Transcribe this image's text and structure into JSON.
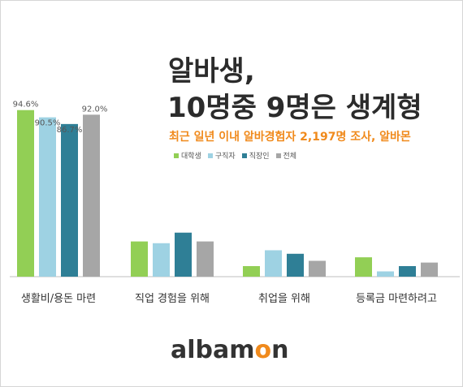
{
  "title_line1": "알바생,",
  "title_line2": "10명중 9명은 생계형",
  "subtitle": "최근 일년 이내 알바경험자 2,197명 조사, 알바몬",
  "logo": {
    "text_before": "albam",
    "text_o": "o",
    "text_after": "n"
  },
  "colors": {
    "accent": "#f08a1c"
  },
  "chart_data": {
    "type": "bar",
    "categories": [
      "생활비/용돈 마련",
      "직업 경험을 위해",
      "취업을 위해",
      "등록금 마련하려고"
    ],
    "series": [
      {
        "name": "대학생",
        "color": "#92cf55",
        "values": [
          94.6,
          20,
          6,
          11
        ]
      },
      {
        "name": "구직자",
        "color": "#9ed2e3",
        "values": [
          90.5,
          19,
          15,
          3
        ]
      },
      {
        "name": "직장인",
        "color": "#2f7f96",
        "values": [
          86.7,
          25,
          13,
          6
        ]
      },
      {
        "name": "전체",
        "color": "#a6a6a6",
        "values": [
          92.0,
          20,
          9,
          8
        ]
      }
    ],
    "data_labels": [
      [
        "94.6%",
        "90.5%",
        "86.7%",
        "92.0%"
      ],
      [
        "",
        "",
        "",
        ""
      ],
      [
        "",
        "",
        "",
        ""
      ],
      [
        "",
        "",
        "",
        ""
      ]
    ],
    "ylim": [
      0,
      100
    ],
    "grid": false,
    "legend": "top-right"
  }
}
